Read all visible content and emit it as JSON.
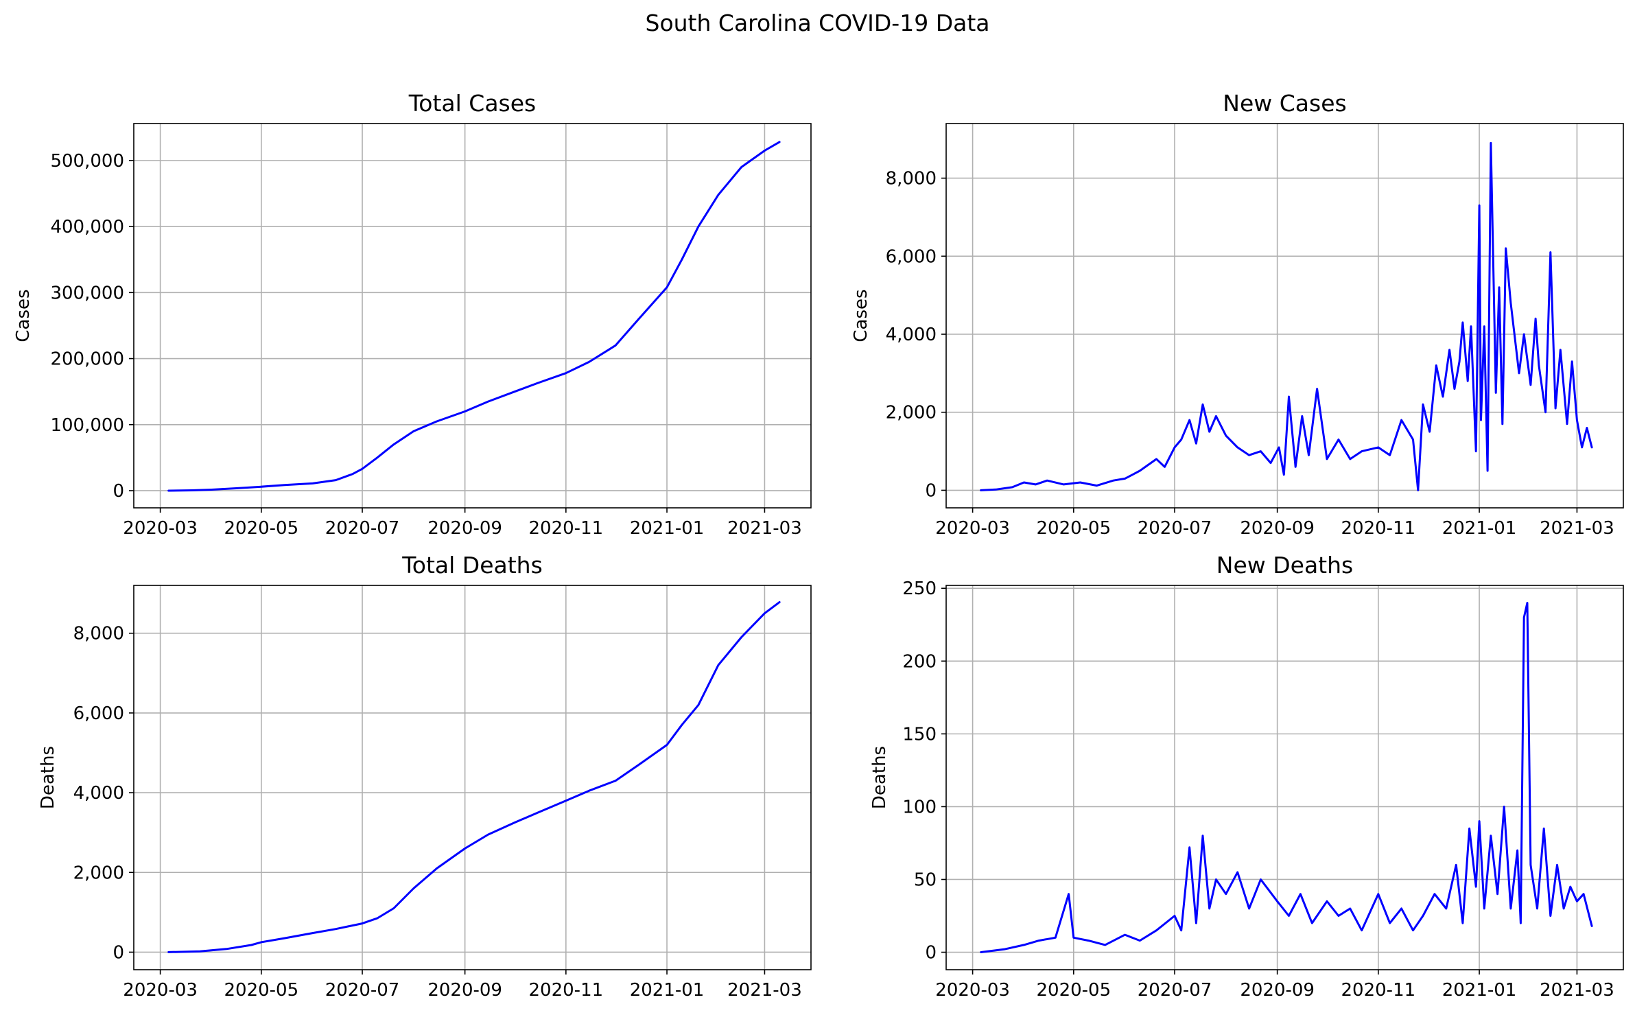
{
  "figure": {
    "title": "South Carolina COVID-19 Data",
    "line_color": "#0000ff"
  },
  "chart_data": [
    {
      "type": "line",
      "title": "Total Cases",
      "xlabel": "",
      "ylabel": "Cases",
      "x_ticks": [
        "2020-03",
        "2020-05",
        "2020-07",
        "2020-09",
        "2020-11",
        "2021-01",
        "2021-03"
      ],
      "y_ticks": [
        0,
        100000,
        200000,
        300000,
        400000,
        500000
      ],
      "y_tick_labels": [
        "0",
        "100,000",
        "200,000",
        "300,000",
        "400,000",
        "500,000"
      ],
      "xlim": [
        "2020-02-14",
        "2021-03-29"
      ],
      "ylim": [
        -26000,
        556000
      ],
      "grid": true,
      "series": [
        {
          "x": [
            "2020-03-06",
            "2020-03-20",
            "2020-04-01",
            "2020-04-15",
            "2020-05-01",
            "2020-05-15",
            "2020-06-01",
            "2020-06-15",
            "2020-06-25",
            "2020-07-01",
            "2020-07-10",
            "2020-07-20",
            "2020-08-01",
            "2020-08-15",
            "2020-09-01",
            "2020-09-15",
            "2020-10-01",
            "2020-10-15",
            "2020-11-01",
            "2020-11-15",
            "2020-12-01",
            "2020-12-15",
            "2021-01-01",
            "2021-01-10",
            "2021-01-20",
            "2021-02-01",
            "2021-02-15",
            "2021-03-01",
            "2021-03-10"
          ],
          "y": [
            0,
            500,
            1500,
            3500,
            6000,
            8500,
            11000,
            16000,
            25000,
            33000,
            50000,
            70000,
            90000,
            105000,
            120000,
            135000,
            150000,
            163000,
            178000,
            195000,
            220000,
            260000,
            308000,
            350000,
            400000,
            448000,
            490000,
            515000,
            528000
          ]
        }
      ]
    },
    {
      "type": "line",
      "title": "New Cases",
      "xlabel": "",
      "ylabel": "Cases",
      "x_ticks": [
        "2020-03",
        "2020-05",
        "2020-07",
        "2020-09",
        "2020-11",
        "2021-01",
        "2021-03"
      ],
      "y_ticks": [
        0,
        2000,
        4000,
        6000,
        8000
      ],
      "y_tick_labels": [
        "0",
        "2,000",
        "4,000",
        "6,000",
        "8,000"
      ],
      "xlim": [
        "2020-02-14",
        "2021-03-29"
      ],
      "ylim": [
        -450,
        9400
      ],
      "grid": true,
      "series": [
        {
          "x": [
            "2020-03-06",
            "2020-03-15",
            "2020-03-25",
            "2020-04-01",
            "2020-04-08",
            "2020-04-15",
            "2020-04-25",
            "2020-05-05",
            "2020-05-15",
            "2020-05-25",
            "2020-06-01",
            "2020-06-10",
            "2020-06-20",
            "2020-06-25",
            "2020-07-01",
            "2020-07-05",
            "2020-07-10",
            "2020-07-14",
            "2020-07-18",
            "2020-07-22",
            "2020-07-26",
            "2020-08-01",
            "2020-08-08",
            "2020-08-15",
            "2020-08-22",
            "2020-08-28",
            "2020-09-02",
            "2020-09-05",
            "2020-09-08",
            "2020-09-12",
            "2020-09-16",
            "2020-09-20",
            "2020-09-25",
            "2020-10-01",
            "2020-10-08",
            "2020-10-15",
            "2020-10-22",
            "2020-11-01",
            "2020-11-08",
            "2020-11-15",
            "2020-11-22",
            "2020-11-25",
            "2020-11-28",
            "2020-12-02",
            "2020-12-06",
            "2020-12-10",
            "2020-12-14",
            "2020-12-17",
            "2020-12-20",
            "2020-12-22",
            "2020-12-25",
            "2020-12-27",
            "2020-12-30",
            "2021-01-01",
            "2021-01-02",
            "2021-01-04",
            "2021-01-06",
            "2021-01-08",
            "2021-01-11",
            "2021-01-13",
            "2021-01-15",
            "2021-01-17",
            "2021-01-20",
            "2021-01-25",
            "2021-01-28",
            "2021-02-01",
            "2021-02-04",
            "2021-02-06",
            "2021-02-10",
            "2021-02-13",
            "2021-02-16",
            "2021-02-19",
            "2021-02-23",
            "2021-02-26",
            "2021-03-01",
            "2021-03-04",
            "2021-03-07",
            "2021-03-10"
          ],
          "y": [
            0,
            20,
            80,
            200,
            150,
            250,
            150,
            200,
            120,
            250,
            300,
            500,
            800,
            600,
            1100,
            1300,
            1800,
            1200,
            2200,
            1500,
            1900,
            1400,
            1100,
            900,
            1000,
            700,
            1100,
            400,
            2400,
            600,
            1900,
            900,
            2600,
            800,
            1300,
            800,
            1000,
            1100,
            900,
            1800,
            1300,
            0,
            2200,
            1500,
            3200,
            2400,
            3600,
            2600,
            3300,
            4300,
            2800,
            4200,
            1000,
            7300,
            1800,
            4200,
            500,
            8900,
            2500,
            5200,
            1700,
            6200,
            4800,
            3000,
            4000,
            2700,
            4400,
            3200,
            2000,
            6100,
            2100,
            3600,
            1700,
            3300,
            1800,
            1100,
            1600,
            1100
          ]
        }
      ]
    },
    {
      "type": "line",
      "title": "Total Deaths",
      "xlabel": "",
      "ylabel": "Deaths",
      "x_ticks": [
        "2020-03",
        "2020-05",
        "2020-07",
        "2020-09",
        "2020-11",
        "2021-01",
        "2021-03"
      ],
      "y_ticks": [
        0,
        2000,
        4000,
        6000,
        8000
      ],
      "y_tick_labels": [
        "0",
        "2,000",
        "4,000",
        "6,000",
        "8,000"
      ],
      "xlim": [
        "2020-02-14",
        "2021-03-29"
      ],
      "ylim": [
        -440,
        9200
      ],
      "grid": true,
      "series": [
        {
          "x": [
            "2020-03-06",
            "2020-03-25",
            "2020-04-10",
            "2020-04-25",
            "2020-05-01",
            "2020-05-15",
            "2020-06-01",
            "2020-06-15",
            "2020-07-01",
            "2020-07-10",
            "2020-07-20",
            "2020-08-01",
            "2020-08-15",
            "2020-09-01",
            "2020-09-15",
            "2020-10-01",
            "2020-10-15",
            "2020-11-01",
            "2020-11-15",
            "2020-12-01",
            "2020-12-15",
            "2021-01-01",
            "2021-01-10",
            "2021-01-20",
            "2021-02-01",
            "2021-02-15",
            "2021-03-01",
            "2021-03-10"
          ],
          "y": [
            0,
            20,
            80,
            180,
            250,
            350,
            480,
            580,
            720,
            850,
            1100,
            1600,
            2100,
            2600,
            2950,
            3250,
            3500,
            3800,
            4050,
            4300,
            4700,
            5200,
            5700,
            6200,
            7200,
            7900,
            8500,
            8780
          ]
        }
      ]
    },
    {
      "type": "line",
      "title": "New Deaths",
      "xlabel": "",
      "ylabel": "Deaths",
      "x_ticks": [
        "2020-03",
        "2020-05",
        "2020-07",
        "2020-09",
        "2020-11",
        "2021-01",
        "2021-03"
      ],
      "y_ticks": [
        0,
        50,
        100,
        150,
        200,
        250
      ],
      "y_tick_labels": [
        "0",
        "50",
        "100",
        "150",
        "200",
        "250"
      ],
      "xlim": [
        "2020-02-14",
        "2021-03-29"
      ],
      "ylim": [
        -12,
        252
      ],
      "grid": true,
      "series": [
        {
          "x": [
            "2020-03-06",
            "2020-03-20",
            "2020-04-01",
            "2020-04-10",
            "2020-04-20",
            "2020-04-28",
            "2020-05-01",
            "2020-05-10",
            "2020-05-20",
            "2020-06-01",
            "2020-06-10",
            "2020-06-20",
            "2020-07-01",
            "2020-07-05",
            "2020-07-10",
            "2020-07-14",
            "2020-07-18",
            "2020-07-22",
            "2020-07-26",
            "2020-08-01",
            "2020-08-08",
            "2020-08-15",
            "2020-08-22",
            "2020-09-01",
            "2020-09-08",
            "2020-09-15",
            "2020-09-22",
            "2020-10-01",
            "2020-10-08",
            "2020-10-15",
            "2020-10-22",
            "2020-11-01",
            "2020-11-08",
            "2020-11-15",
            "2020-11-22",
            "2020-11-28",
            "2020-12-05",
            "2020-12-12",
            "2020-12-18",
            "2020-12-22",
            "2020-12-26",
            "2020-12-30",
            "2021-01-01",
            "2021-01-04",
            "2021-01-08",
            "2021-01-12",
            "2021-01-16",
            "2021-01-20",
            "2021-01-24",
            "2021-01-26",
            "2021-01-28",
            "2021-01-30",
            "2021-02-01",
            "2021-02-05",
            "2021-02-09",
            "2021-02-13",
            "2021-02-17",
            "2021-02-21",
            "2021-02-25",
            "2021-03-01",
            "2021-03-05",
            "2021-03-10"
          ],
          "y": [
            0,
            2,
            5,
            8,
            10,
            40,
            10,
            8,
            5,
            12,
            8,
            15,
            25,
            15,
            72,
            20,
            80,
            30,
            50,
            40,
            55,
            30,
            50,
            35,
            25,
            40,
            20,
            35,
            25,
            30,
            15,
            40,
            20,
            30,
            15,
            25,
            40,
            30,
            60,
            20,
            85,
            45,
            90,
            30,
            80,
            40,
            100,
            30,
            70,
            20,
            230,
            240,
            60,
            30,
            85,
            25,
            60,
            30,
            45,
            35,
            40,
            18
          ]
        }
      ]
    }
  ]
}
